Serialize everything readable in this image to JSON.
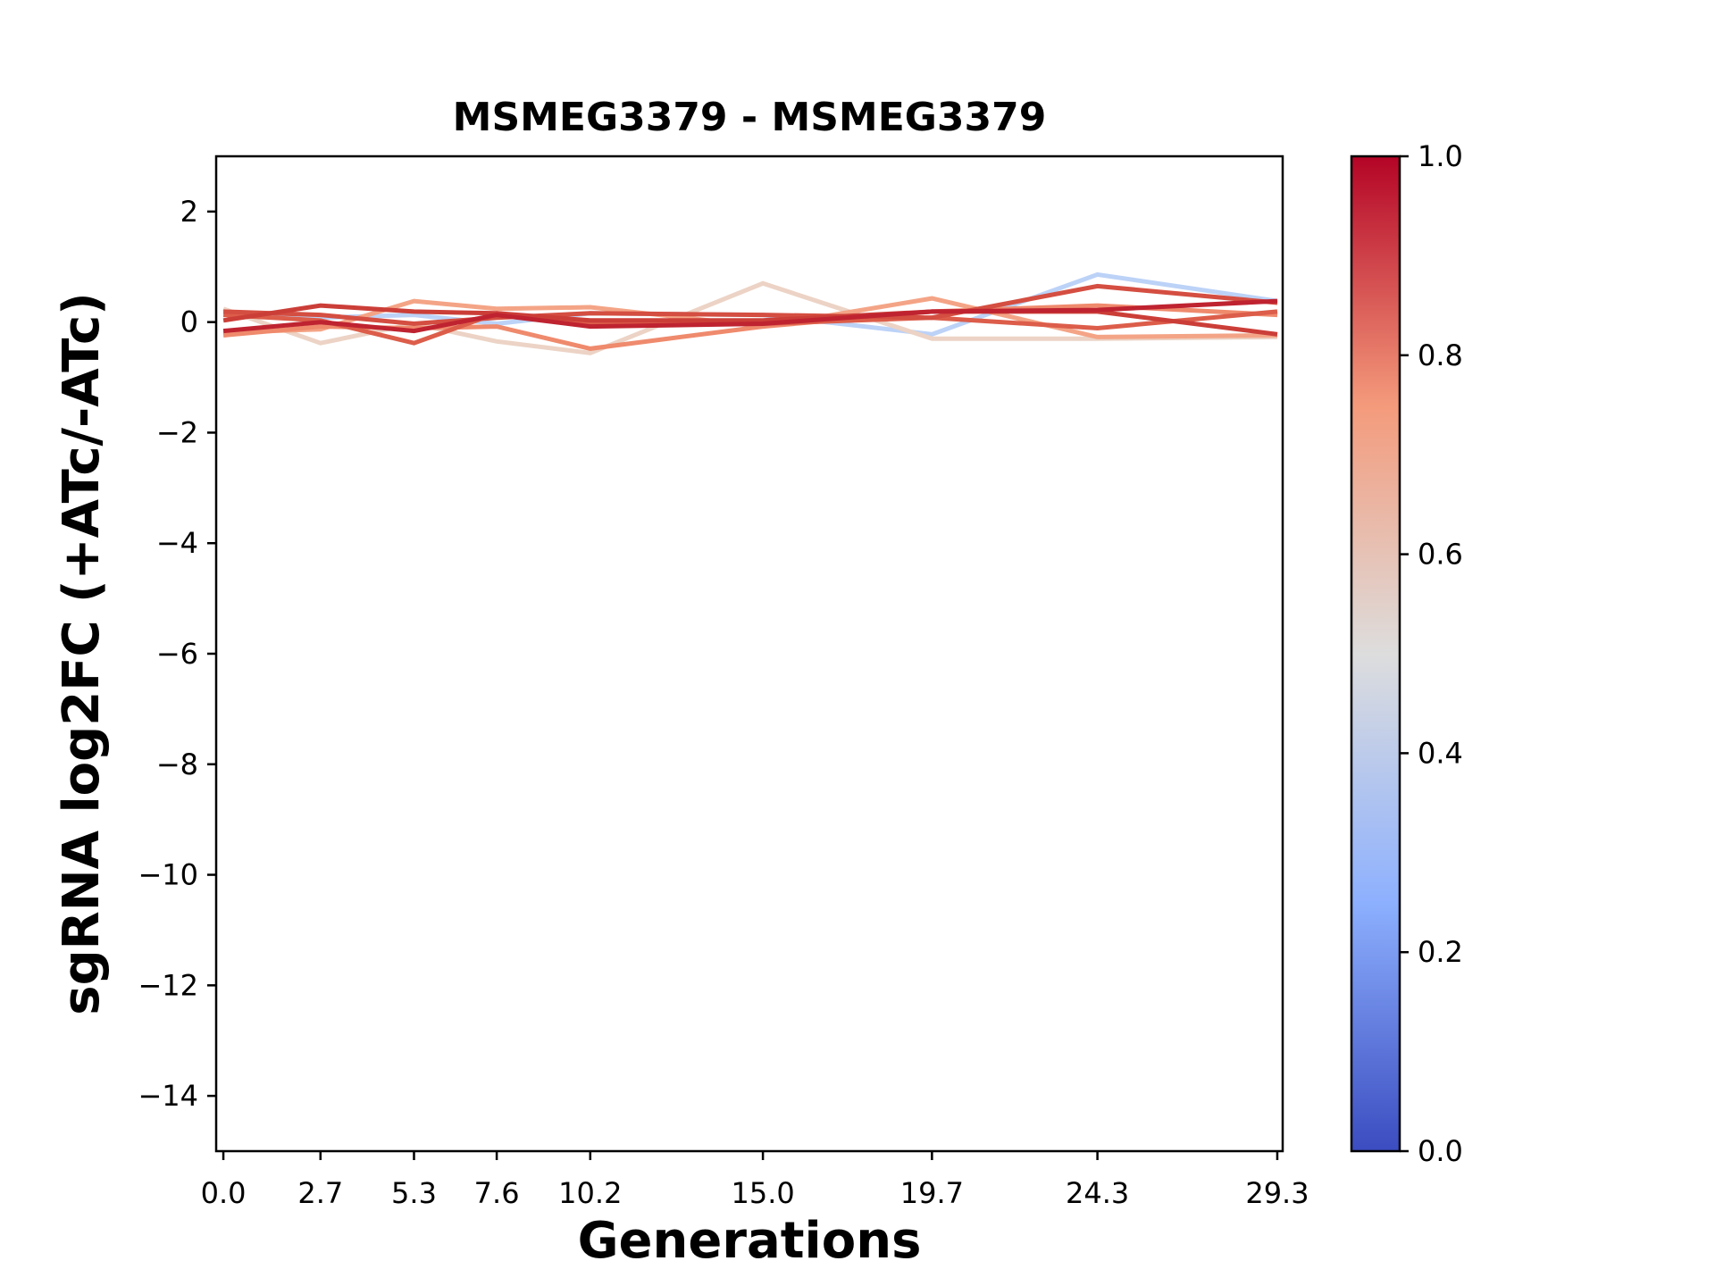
{
  "chart_data": {
    "type": "line",
    "title": "MSMEG3379 - MSMEG3379",
    "xlabel": "Generations",
    "ylabel": "sgRNA log2FC (+ATc/-ATc)",
    "x": [
      0.0,
      2.7,
      5.3,
      7.6,
      10.2,
      15.0,
      19.7,
      24.3,
      29.3
    ],
    "xtick_labels": [
      "0.0",
      "2.7",
      "5.3",
      "7.6",
      "10.2",
      "15.0",
      "19.7",
      "24.3",
      "29.3"
    ],
    "xlim": [
      -0.2,
      29.45
    ],
    "ylim": [
      -15,
      3
    ],
    "yticks": [
      2,
      0,
      -2,
      -4,
      -6,
      -8,
      -10,
      -12,
      -14
    ],
    "ytick_labels": [
      "2",
      "0",
      "−2",
      "−4",
      "−6",
      "−8",
      "−10",
      "−12",
      "−14"
    ],
    "grid": false,
    "series": [
      {
        "color_value": 0.35,
        "color": "#bcd2f7",
        "values": [
          0.19,
          0.08,
          0.13,
          -0.03,
          0.16,
          0.13,
          -0.22,
          0.86,
          0.38
        ]
      },
      {
        "color_value": 0.58,
        "color": "#ecd3c5",
        "values": [
          0.24,
          -0.38,
          -0.03,
          -0.35,
          -0.56,
          0.7,
          -0.3,
          -0.3,
          -0.27
        ]
      },
      {
        "color_value": 0.72,
        "color": "#f4a486",
        "values": [
          -0.19,
          -0.13,
          0.38,
          0.24,
          0.27,
          -0.08,
          0.43,
          -0.27,
          -0.24
        ]
      },
      {
        "color_value": 0.78,
        "color": "#ef8a6d",
        "values": [
          -0.24,
          -0.08,
          -0.11,
          -0.08,
          -0.48,
          -0.08,
          0.19,
          0.3,
          0.13
        ]
      },
      {
        "color_value": 0.88,
        "color": "#dc5d4a",
        "values": [
          0.13,
          0.03,
          -0.38,
          0.16,
          -0.03,
          -0.03,
          0.08,
          -0.11,
          0.19
        ]
      },
      {
        "color_value": 0.9,
        "color": "#d44e41",
        "values": [
          0.19,
          0.13,
          -0.03,
          0.08,
          0.16,
          0.13,
          0.08,
          0.65,
          0.35
        ]
      },
      {
        "color_value": 0.93,
        "color": "#cb3e38",
        "values": [
          0.03,
          0.3,
          0.19,
          0.16,
          0.03,
          0.03,
          0.19,
          0.19,
          -0.22
        ]
      },
      {
        "color_value": 0.97,
        "color": "#bf2330",
        "values": [
          -0.16,
          0.0,
          -0.16,
          0.13,
          -0.08,
          -0.03,
          0.19,
          0.22,
          0.38
        ]
      }
    ],
    "colorbar": {
      "colormap": "coolwarm",
      "range": [
        0.0,
        1.0
      ],
      "ticks": [
        0.0,
        0.2,
        0.4,
        0.6,
        0.8,
        1.0
      ],
      "tick_labels": [
        "0.0",
        "0.2",
        "0.4",
        "0.6",
        "0.8",
        "1.0"
      ],
      "stops": [
        "#3b4cc0",
        "#8db0fe",
        "#dddddd",
        "#f49a7b",
        "#b40426"
      ]
    }
  }
}
